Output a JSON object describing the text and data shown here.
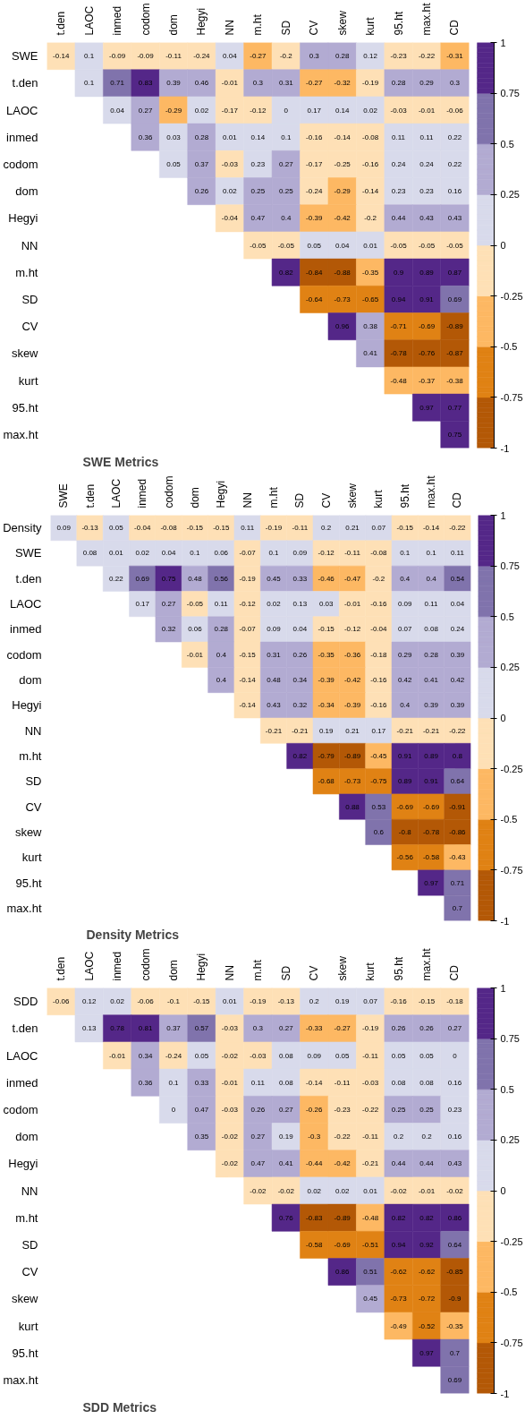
{
  "chart_data": [
    {
      "type": "heatmap",
      "title": "SWE Metrics",
      "data_labels": true,
      "clim": [
        -1,
        1
      ],
      "cticks": [
        -1,
        -0.75,
        -0.5,
        -0.25,
        0,
        0.25,
        0.5,
        0.75,
        1
      ],
      "colors": [
        "#b35806",
        "#e08214",
        "#fdb863",
        "#fee0b6",
        "#d8daeb",
        "#b2abd2",
        "#8073ac",
        "#542788"
      ],
      "categories": [
        "t.den",
        "LAOC",
        "inmed",
        "codom",
        "dom",
        "Hegyi",
        "NN",
        "m.ht",
        "SD",
        "CV",
        "skew",
        "kurt",
        "95.ht",
        "max.ht",
        "CD"
      ],
      "y_categories": [
        "SWE",
        "t.den",
        "LAOC",
        "inmed",
        "codom",
        "dom",
        "Hegyi",
        "NN",
        "m.ht",
        "SD",
        "CV",
        "skew",
        "kurt",
        "95.ht",
        "max.ht"
      ],
      "cells": [
        [
          -0.14,
          0.1,
          -0.09,
          -0.09,
          -0.11,
          -0.24,
          0.04,
          -0.27,
          -0.2,
          0.3,
          0.28,
          0.12,
          -0.23,
          -0.22,
          -0.31
        ],
        [
          null,
          0.1,
          0.71,
          0.83,
          0.39,
          0.46,
          -0.01,
          0.3,
          0.31,
          -0.27,
          -0.32,
          -0.19,
          0.28,
          0.29,
          0.3
        ],
        [
          null,
          null,
          0.04,
          0.27,
          -0.29,
          0.02,
          -0.17,
          -0.12,
          0,
          0.17,
          0.14,
          0.02,
          -0.03,
          -0.01,
          -0.06
        ],
        [
          null,
          null,
          null,
          0.36,
          0.03,
          0.28,
          0.01,
          0.14,
          0.1,
          -0.16,
          -0.14,
          -0.08,
          0.11,
          0.11,
          0.22
        ],
        [
          null,
          null,
          null,
          null,
          0.05,
          0.37,
          -0.03,
          0.23,
          0.27,
          -0.17,
          -0.25,
          -0.16,
          0.24,
          0.24,
          0.22
        ],
        [
          null,
          null,
          null,
          null,
          null,
          0.26,
          0.02,
          0.25,
          0.25,
          -0.24,
          -0.29,
          -0.14,
          0.23,
          0.23,
          0.16
        ],
        [
          null,
          null,
          null,
          null,
          null,
          null,
          -0.04,
          0.47,
          0.4,
          -0.39,
          -0.42,
          -0.2,
          0.44,
          0.43,
          0.43
        ],
        [
          null,
          null,
          null,
          null,
          null,
          null,
          null,
          -0.05,
          -0.05,
          0.05,
          0.04,
          0.01,
          -0.05,
          -0.05,
          -0.05
        ],
        [
          null,
          null,
          null,
          null,
          null,
          null,
          null,
          null,
          0.82,
          -0.84,
          -0.88,
          -0.35,
          0.9,
          0.89,
          0.87
        ],
        [
          null,
          null,
          null,
          null,
          null,
          null,
          null,
          null,
          null,
          -0.64,
          -0.73,
          -0.65,
          0.94,
          0.91,
          0.69
        ],
        [
          null,
          null,
          null,
          null,
          null,
          null,
          null,
          null,
          null,
          null,
          0.96,
          0.38,
          -0.71,
          -0.69,
          -0.89
        ],
        [
          null,
          null,
          null,
          null,
          null,
          null,
          null,
          null,
          null,
          null,
          null,
          0.41,
          -0.78,
          -0.76,
          -0.87
        ],
        [
          null,
          null,
          null,
          null,
          null,
          null,
          null,
          null,
          null,
          null,
          null,
          null,
          -0.48,
          -0.37,
          -0.38
        ],
        [
          null,
          null,
          null,
          null,
          null,
          null,
          null,
          null,
          null,
          null,
          null,
          null,
          null,
          0.97,
          0.77
        ],
        [
          null,
          null,
          null,
          null,
          null,
          null,
          null,
          null,
          null,
          null,
          null,
          null,
          null,
          null,
          0.75
        ]
      ]
    },
    {
      "type": "heatmap",
      "title": "Density Metrics",
      "data_labels": true,
      "clim": [
        -1,
        1
      ],
      "cticks": [
        -1,
        -0.75,
        -0.5,
        -0.25,
        0,
        0.25,
        0.5,
        0.75,
        1
      ],
      "colors": [
        "#b35806",
        "#e08214",
        "#fdb863",
        "#fee0b6",
        "#d8daeb",
        "#b2abd2",
        "#8073ac",
        "#542788"
      ],
      "categories": [
        "SWE",
        "t.den",
        "LAOC",
        "inmed",
        "codom",
        "dom",
        "Hegyi",
        "NN",
        "m.ht",
        "SD",
        "CV",
        "skew",
        "kurt",
        "95.ht",
        "max.ht",
        "CD"
      ],
      "y_categories": [
        "Density",
        "SWE",
        "t.den",
        "LAOC",
        "inmed",
        "codom",
        "dom",
        "Hegyi",
        "NN",
        "m.ht",
        "SD",
        "CV",
        "skew",
        "kurt",
        "95.ht",
        "max.ht"
      ],
      "cells": [
        [
          0.09,
          -0.13,
          0.05,
          -0.04,
          -0.08,
          -0.15,
          -0.15,
          0.11,
          -0.19,
          -0.11,
          0.2,
          0.21,
          0.07,
          -0.15,
          -0.14,
          -0.22
        ],
        [
          null,
          0.08,
          0.01,
          0.02,
          0.04,
          0.1,
          0.06,
          -0.07,
          0.1,
          0.09,
          -0.12,
          -0.11,
          -0.08,
          0.1,
          0.1,
          0.11
        ],
        [
          null,
          null,
          0.22,
          0.69,
          0.75,
          0.48,
          0.56,
          -0.19,
          0.45,
          0.33,
          -0.46,
          -0.47,
          -0.2,
          0.4,
          0.4,
          0.54
        ],
        [
          null,
          null,
          null,
          0.17,
          0.27,
          -0.05,
          0.11,
          -0.12,
          0.02,
          0.13,
          0.03,
          -0.01,
          -0.16,
          0.09,
          0.11,
          0.04
        ],
        [
          null,
          null,
          null,
          null,
          0.32,
          0.06,
          0.28,
          -0.07,
          0.09,
          0.04,
          -0.15,
          -0.12,
          -0.04,
          0.07,
          0.08,
          0.24
        ],
        [
          null,
          null,
          null,
          null,
          null,
          -0.01,
          0.4,
          -0.15,
          0.31,
          0.26,
          -0.35,
          -0.36,
          -0.18,
          0.29,
          0.28,
          0.39
        ],
        [
          null,
          null,
          null,
          null,
          null,
          null,
          0.4,
          -0.14,
          0.48,
          0.34,
          -0.39,
          -0.42,
          -0.16,
          0.42,
          0.41,
          0.42
        ],
        [
          null,
          null,
          null,
          null,
          null,
          null,
          null,
          -0.14,
          0.43,
          0.32,
          -0.34,
          -0.39,
          -0.16,
          0.4,
          0.39,
          0.39
        ],
        [
          null,
          null,
          null,
          null,
          null,
          null,
          null,
          null,
          -0.21,
          -0.21,
          0.19,
          0.21,
          0.17,
          -0.21,
          -0.21,
          -0.22
        ],
        [
          null,
          null,
          null,
          null,
          null,
          null,
          null,
          null,
          null,
          0.82,
          -0.79,
          -0.89,
          -0.45,
          0.91,
          0.89,
          0.8
        ],
        [
          null,
          null,
          null,
          null,
          null,
          null,
          null,
          null,
          null,
          null,
          -0.68,
          -0.73,
          -0.75,
          0.89,
          0.91,
          0.64
        ],
        [
          null,
          null,
          null,
          null,
          null,
          null,
          null,
          null,
          null,
          null,
          null,
          0.88,
          0.53,
          -0.69,
          -0.69,
          -0.91
        ],
        [
          null,
          null,
          null,
          null,
          null,
          null,
          null,
          null,
          null,
          null,
          null,
          null,
          0.6,
          -0.8,
          -0.78,
          -0.86
        ],
        [
          null,
          null,
          null,
          null,
          null,
          null,
          null,
          null,
          null,
          null,
          null,
          null,
          null,
          -0.56,
          -0.58,
          -0.43
        ],
        [
          null,
          null,
          null,
          null,
          null,
          null,
          null,
          null,
          null,
          null,
          null,
          null,
          null,
          null,
          0.97,
          0.71
        ],
        [
          null,
          null,
          null,
          null,
          null,
          null,
          null,
          null,
          null,
          null,
          null,
          null,
          null,
          null,
          null,
          0.7
        ]
      ]
    },
    {
      "type": "heatmap",
      "title": "SDD Metrics",
      "data_labels": true,
      "clim": [
        -1,
        1
      ],
      "cticks": [
        -1,
        -0.75,
        -0.5,
        -0.25,
        0,
        0.25,
        0.5,
        0.75,
        1
      ],
      "colors": [
        "#b35806",
        "#e08214",
        "#fdb863",
        "#fee0b6",
        "#d8daeb",
        "#b2abd2",
        "#8073ac",
        "#542788"
      ],
      "categories": [
        "t.den",
        "LAOC",
        "inmed",
        "codom",
        "dom",
        "Hegyi",
        "NN",
        "m.ht",
        "SD",
        "CV",
        "skew",
        "kurt",
        "95.ht",
        "max.ht",
        "CD"
      ],
      "y_categories": [
        "SDD",
        "t.den",
        "LAOC",
        "inmed",
        "codom",
        "dom",
        "Hegyi",
        "NN",
        "m.ht",
        "SD",
        "CV",
        "skew",
        "kurt",
        "95.ht",
        "max.ht"
      ],
      "cells": [
        [
          -0.06,
          0.12,
          0.02,
          -0.06,
          -0.1,
          -0.15,
          0.01,
          -0.19,
          -0.13,
          0.2,
          0.19,
          0.07,
          -0.16,
          -0.15,
          -0.18
        ],
        [
          null,
          0.13,
          0.78,
          0.81,
          0.37,
          0.57,
          -0.03,
          0.3,
          0.27,
          -0.33,
          -0.27,
          -0.19,
          0.26,
          0.26,
          0.27
        ],
        [
          null,
          null,
          -0.01,
          0.34,
          -0.24,
          0.05,
          -0.02,
          -0.03,
          0.08,
          0.09,
          0.05,
          -0.11,
          0.05,
          0.05,
          0
        ],
        [
          null,
          null,
          null,
          0.36,
          0.1,
          0.33,
          -0.01,
          0.11,
          0.08,
          -0.14,
          -0.11,
          -0.03,
          0.08,
          0.08,
          0.16
        ],
        [
          null,
          null,
          null,
          null,
          0,
          0.47,
          -0.03,
          0.26,
          0.27,
          -0.26,
          -0.23,
          -0.22,
          0.25,
          0.25,
          0.23
        ],
        [
          null,
          null,
          null,
          null,
          null,
          0.35,
          -0.02,
          0.27,
          0.19,
          -0.3,
          -0.22,
          -0.11,
          0.2,
          0.2,
          0.16
        ],
        [
          null,
          null,
          null,
          null,
          null,
          null,
          -0.02,
          0.47,
          0.41,
          -0.44,
          -0.42,
          -0.21,
          0.44,
          0.44,
          0.43
        ],
        [
          null,
          null,
          null,
          null,
          null,
          null,
          null,
          -0.02,
          -0.02,
          0.02,
          0.02,
          0.01,
          -0.02,
          -0.01,
          -0.02
        ],
        [
          null,
          null,
          null,
          null,
          null,
          null,
          null,
          null,
          0.76,
          -0.83,
          -0.89,
          -0.48,
          0.82,
          0.82,
          0.86
        ],
        [
          null,
          null,
          null,
          null,
          null,
          null,
          null,
          null,
          null,
          -0.58,
          -0.69,
          -0.51,
          0.94,
          0.92,
          0.64
        ],
        [
          null,
          null,
          null,
          null,
          null,
          null,
          null,
          null,
          null,
          null,
          0.86,
          0.51,
          -0.62,
          -0.62,
          -0.85
        ],
        [
          null,
          null,
          null,
          null,
          null,
          null,
          null,
          null,
          null,
          null,
          null,
          0.45,
          -0.73,
          -0.72,
          -0.9
        ],
        [
          null,
          null,
          null,
          null,
          null,
          null,
          null,
          null,
          null,
          null,
          null,
          null,
          -0.49,
          -0.52,
          -0.35
        ],
        [
          null,
          null,
          null,
          null,
          null,
          null,
          null,
          null,
          null,
          null,
          null,
          null,
          null,
          0.97,
          0.7
        ],
        [
          null,
          null,
          null,
          null,
          null,
          null,
          null,
          null,
          null,
          null,
          null,
          null,
          null,
          null,
          0.69
        ]
      ]
    }
  ]
}
